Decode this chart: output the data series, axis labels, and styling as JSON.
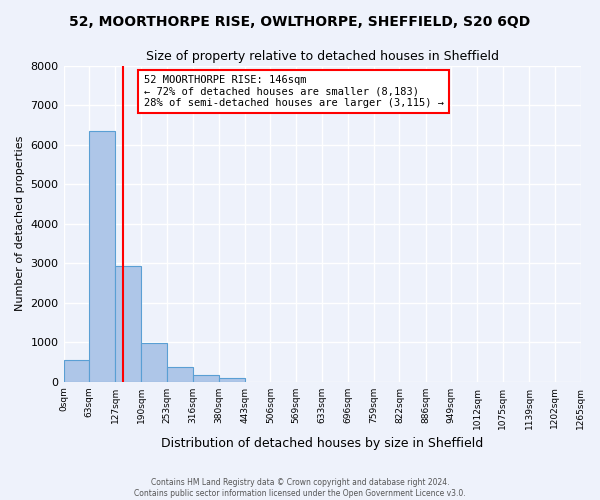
{
  "title": "52, MOORTHORPE RISE, OWLTHORPE, SHEFFIELD, S20 6QD",
  "subtitle": "Size of property relative to detached houses in Sheffield",
  "xlabel": "Distribution of detached houses by size in Sheffield",
  "ylabel": "Number of detached properties",
  "bin_edges": [
    0,
    63,
    127,
    190,
    253,
    316,
    380,
    443,
    506,
    569,
    633,
    696,
    759,
    822,
    886,
    949,
    1012,
    1075,
    1139,
    1202,
    1265
  ],
  "bar_heights": [
    550,
    6350,
    2920,
    980,
    375,
    175,
    90,
    0,
    0,
    0,
    0,
    0,
    0,
    0,
    0,
    0,
    0,
    0,
    0,
    0
  ],
  "bar_color": "#aec6e8",
  "bar_edgecolor": "#5a9fd4",
  "property_line_x": 146,
  "property_line_color": "red",
  "annotation_text": "52 MOORTHORPE RISE: 146sqm\n← 72% of detached houses are smaller (8,183)\n28% of semi-detached houses are larger (3,115) →",
  "annotation_box_color": "white",
  "annotation_box_edgecolor": "red",
  "ylim": [
    0,
    8000
  ],
  "yticks": [
    0,
    1000,
    2000,
    3000,
    4000,
    5000,
    6000,
    7000,
    8000
  ],
  "tick_labels": [
    "0sqm",
    "63sqm",
    "127sqm",
    "190sqm",
    "253sqm",
    "316sqm",
    "380sqm",
    "443sqm",
    "506sqm",
    "569sqm",
    "633sqm",
    "696sqm",
    "759sqm",
    "822sqm",
    "886sqm",
    "949sqm",
    "1012sqm",
    "1075sqm",
    "1139sqm",
    "1202sqm",
    "1265sqm"
  ],
  "footer_text": "Contains HM Land Registry data © Crown copyright and database right 2024.\nContains public sector information licensed under the Open Government Licence v3.0.",
  "background_color": "#eef2fb",
  "grid_color": "white",
  "fig_width": 6.0,
  "fig_height": 5.0
}
